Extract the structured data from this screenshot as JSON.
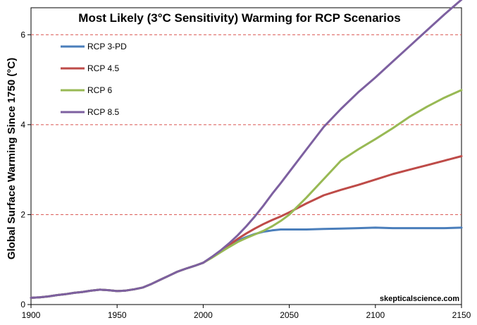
{
  "chart_data": {
    "type": "line",
    "title": "Most Likely (3°C Sensitivity) Warming for RCP Scenarios",
    "ylabel": "Global Surface Warming Since 1750 (°C)",
    "xlabel": "",
    "credit": "skepticalscience.com",
    "xlim": [
      1900,
      2150
    ],
    "ylim": [
      0,
      6.6
    ],
    "xticks": [
      "1900",
      "1950",
      "2000",
      "2050",
      "2100",
      "2150"
    ],
    "yticks": [
      "0",
      "2",
      "4",
      "6"
    ],
    "ytick_values": [
      0,
      2,
      4,
      6
    ],
    "xtick_values": [
      1900,
      1950,
      2000,
      2050,
      2100,
      2150
    ],
    "grid": "horizontal dashed at 2, 4, 6",
    "grid_color": "#d9534f",
    "legend_position": "top-left",
    "series": [
      {
        "name": "RCP 3-PD",
        "color": "#4a7ebb",
        "x": [
          1900,
          1905,
          1910,
          1915,
          1920,
          1925,
          1930,
          1935,
          1940,
          1945,
          1950,
          1955,
          1960,
          1965,
          1970,
          1975,
          1980,
          1985,
          1990,
          1995,
          2000,
          2005,
          2010,
          2015,
          2020,
          2025,
          2030,
          2035,
          2040,
          2045,
          2050,
          2060,
          2070,
          2080,
          2090,
          2100,
          2110,
          2120,
          2130,
          2140,
          2150
        ],
        "y": [
          0.15,
          0.16,
          0.18,
          0.21,
          0.23,
          0.26,
          0.28,
          0.31,
          0.33,
          0.32,
          0.3,
          0.31,
          0.34,
          0.38,
          0.46,
          0.55,
          0.64,
          0.73,
          0.8,
          0.86,
          0.93,
          1.05,
          1.18,
          1.3,
          1.42,
          1.5,
          1.57,
          1.62,
          1.65,
          1.67,
          1.67,
          1.67,
          1.68,
          1.69,
          1.7,
          1.71,
          1.7,
          1.7,
          1.7,
          1.7,
          1.71
        ]
      },
      {
        "name": "RCP 4.5",
        "color": "#be4b48",
        "x": [
          1900,
          1905,
          1910,
          1915,
          1920,
          1925,
          1930,
          1935,
          1940,
          1945,
          1950,
          1955,
          1960,
          1965,
          1970,
          1975,
          1980,
          1985,
          1990,
          1995,
          2000,
          2005,
          2010,
          2015,
          2020,
          2025,
          2030,
          2035,
          2040,
          2045,
          2050,
          2060,
          2070,
          2080,
          2090,
          2100,
          2110,
          2120,
          2130,
          2140,
          2150
        ],
        "y": [
          0.15,
          0.16,
          0.18,
          0.21,
          0.23,
          0.26,
          0.28,
          0.31,
          0.33,
          0.32,
          0.3,
          0.31,
          0.34,
          0.38,
          0.46,
          0.55,
          0.64,
          0.73,
          0.8,
          0.86,
          0.93,
          1.05,
          1.18,
          1.32,
          1.46,
          1.58,
          1.69,
          1.79,
          1.88,
          1.96,
          2.05,
          2.25,
          2.43,
          2.55,
          2.66,
          2.78,
          2.9,
          3.0,
          3.1,
          3.2,
          3.3
        ]
      },
      {
        "name": "RCP 6",
        "color": "#98b954",
        "x": [
          1900,
          1905,
          1910,
          1915,
          1920,
          1925,
          1930,
          1935,
          1940,
          1945,
          1950,
          1955,
          1960,
          1965,
          1970,
          1975,
          1980,
          1985,
          1990,
          1995,
          2000,
          2005,
          2010,
          2015,
          2020,
          2025,
          2030,
          2035,
          2040,
          2045,
          2050,
          2060,
          2070,
          2080,
          2090,
          2100,
          2110,
          2120,
          2130,
          2140,
          2150
        ],
        "y": [
          0.15,
          0.16,
          0.18,
          0.21,
          0.23,
          0.26,
          0.28,
          0.31,
          0.33,
          0.32,
          0.3,
          0.31,
          0.34,
          0.38,
          0.46,
          0.55,
          0.64,
          0.73,
          0.8,
          0.86,
          0.93,
          1.04,
          1.16,
          1.28,
          1.39,
          1.48,
          1.56,
          1.64,
          1.74,
          1.86,
          2.0,
          2.38,
          2.79,
          3.2,
          3.45,
          3.68,
          3.92,
          4.18,
          4.4,
          4.6,
          4.77
        ]
      },
      {
        "name": "RCP 8.5",
        "color": "#7d60a0",
        "x": [
          1900,
          1905,
          1910,
          1915,
          1920,
          1925,
          1930,
          1935,
          1940,
          1945,
          1950,
          1955,
          1960,
          1965,
          1970,
          1975,
          1980,
          1985,
          1990,
          1995,
          2000,
          2005,
          2010,
          2015,
          2020,
          2025,
          2030,
          2035,
          2040,
          2045,
          2050,
          2060,
          2070,
          2080,
          2090,
          2100,
          2110,
          2120,
          2130,
          2140,
          2150
        ],
        "y": [
          0.15,
          0.16,
          0.18,
          0.21,
          0.23,
          0.26,
          0.28,
          0.31,
          0.33,
          0.32,
          0.3,
          0.31,
          0.34,
          0.38,
          0.46,
          0.55,
          0.64,
          0.73,
          0.8,
          0.86,
          0.93,
          1.06,
          1.2,
          1.36,
          1.54,
          1.74,
          1.96,
          2.2,
          2.46,
          2.7,
          2.95,
          3.45,
          3.95,
          4.35,
          4.72,
          5.05,
          5.4,
          5.75,
          6.1,
          6.45,
          6.78
        ]
      }
    ]
  }
}
